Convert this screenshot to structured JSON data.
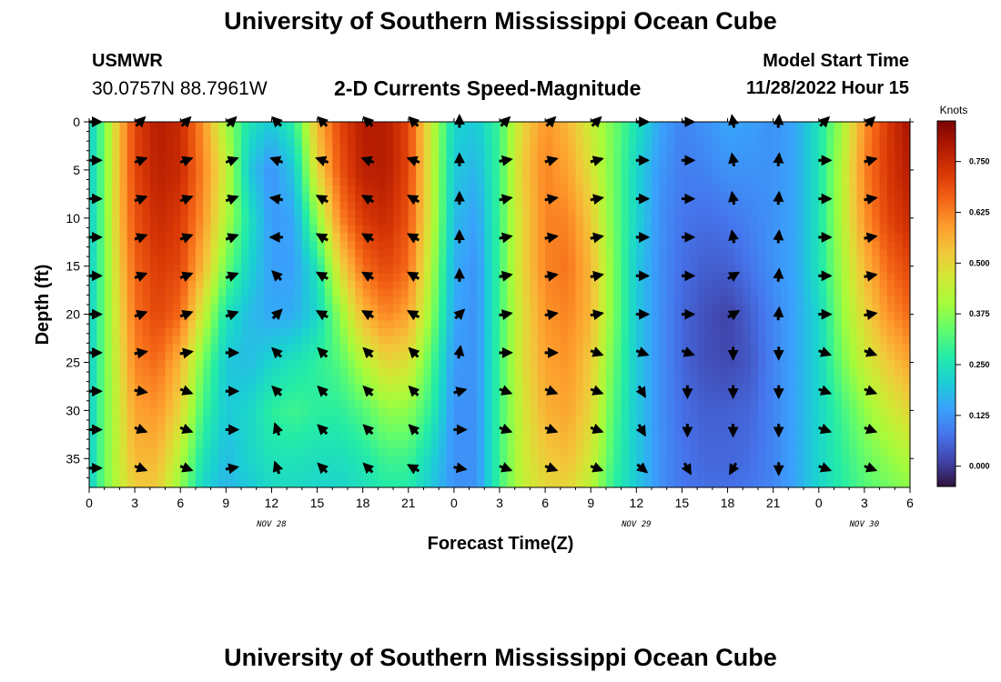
{
  "header": {
    "title_top": "University of Southern Mississippi Ocean Cube",
    "station": "USMWR",
    "coordinates": "30.0757N  88.7961W",
    "subtitle": "2-D Currents Speed-Magnitude",
    "model_start_label": "Model Start Time",
    "model_start_value": "11/28/2022 Hour 15",
    "title_bottom": "University of Southern Mississippi Ocean Cube"
  },
  "chart_data": {
    "type": "heatmap",
    "title": "2-D Currents Speed-Magnitude",
    "xlabel": "Forecast Time(Z)",
    "ylabel": "Depth (ft)",
    "xlim": [
      0,
      54
    ],
    "ylim": [
      0,
      38
    ],
    "x_ticks": [
      0,
      3,
      6,
      9,
      12,
      15,
      18,
      21,
      24,
      27,
      30,
      33,
      36,
      39,
      42,
      45,
      48,
      51,
      54
    ],
    "x_tick_labels": [
      "0",
      "3",
      "6",
      "9",
      "12",
      "15",
      "18",
      "21",
      "0",
      "3",
      "6",
      "9",
      "12",
      "15",
      "18",
      "21",
      "0",
      "3",
      "6"
    ],
    "y_ticks": [
      0,
      5,
      10,
      15,
      20,
      25,
      30,
      35
    ],
    "y_tick_labels": [
      "0",
      "5",
      "10",
      "15",
      "20",
      "25",
      "30",
      "35"
    ],
    "date_labels": [
      {
        "x": 12,
        "label": "NOV 28"
      },
      {
        "x": 36,
        "label": "NOV 29"
      },
      {
        "x": 51,
        "label": "NOV 30"
      }
    ],
    "colorbar": {
      "label": "Knots",
      "range": [
        -0.05,
        0.85
      ],
      "ticks": [
        0.0,
        0.125,
        0.25,
        0.375,
        0.5,
        0.625,
        0.75
      ],
      "tick_labels": [
        "0.000",
        "0.125",
        "0.250",
        "0.375",
        "0.500",
        "0.625",
        "0.750"
      ],
      "colors": [
        "#30123b",
        "#4145ab",
        "#4675ed",
        "#39a2fc",
        "#1bcfd4",
        "#24eca6",
        "#61fc6c",
        "#a4fc3b",
        "#d1e834",
        "#f3c63a",
        "#fe9b2d",
        "#f36315",
        "#d93806",
        "#b11901",
        "#7a0402"
      ]
    },
    "speed_grid": {
      "x": [
        0,
        1,
        2,
        3,
        4.5,
        6,
        7.5,
        9,
        10.5,
        12,
        13.5,
        15,
        16.5,
        18,
        19.5,
        21,
        22.5,
        24,
        25.5,
        27,
        28.5,
        30,
        31.5,
        33,
        34.5,
        36,
        37.5,
        39,
        40.5,
        42,
        43.5,
        45,
        46.5,
        48,
        49.5,
        51,
        52.5,
        54
      ],
      "depth": [
        0,
        5,
        10,
        15,
        20,
        25,
        30,
        35,
        38
      ],
      "values": [
        [
          0.2,
          0.35,
          0.55,
          0.7,
          0.78,
          0.75,
          0.6,
          0.4,
          0.25,
          0.2,
          0.28,
          0.55,
          0.7,
          0.78,
          0.78,
          0.7,
          0.45,
          0.22,
          0.2,
          0.3,
          0.5,
          0.6,
          0.55,
          0.45,
          0.35,
          0.25,
          0.15,
          0.1,
          0.12,
          0.15,
          0.14,
          0.12,
          0.15,
          0.25,
          0.4,
          0.6,
          0.72,
          0.8
        ],
        [
          0.2,
          0.35,
          0.55,
          0.7,
          0.77,
          0.75,
          0.62,
          0.45,
          0.2,
          0.12,
          0.2,
          0.5,
          0.68,
          0.77,
          0.78,
          0.7,
          0.45,
          0.2,
          0.17,
          0.3,
          0.52,
          0.62,
          0.58,
          0.48,
          0.35,
          0.22,
          0.13,
          0.09,
          0.1,
          0.12,
          0.12,
          0.12,
          0.15,
          0.25,
          0.42,
          0.62,
          0.72,
          0.78
        ],
        [
          0.2,
          0.35,
          0.55,
          0.68,
          0.75,
          0.72,
          0.6,
          0.42,
          0.25,
          0.13,
          0.15,
          0.38,
          0.62,
          0.72,
          0.75,
          0.68,
          0.45,
          0.18,
          0.14,
          0.3,
          0.5,
          0.62,
          0.62,
          0.52,
          0.35,
          0.22,
          0.12,
          0.08,
          0.07,
          0.08,
          0.1,
          0.12,
          0.15,
          0.25,
          0.42,
          0.6,
          0.7,
          0.75
        ],
        [
          0.2,
          0.35,
          0.52,
          0.66,
          0.72,
          0.7,
          0.55,
          0.35,
          0.22,
          0.14,
          0.14,
          0.25,
          0.5,
          0.65,
          0.7,
          0.65,
          0.42,
          0.16,
          0.12,
          0.3,
          0.5,
          0.62,
          0.64,
          0.55,
          0.36,
          0.2,
          0.12,
          0.07,
          0.05,
          0.05,
          0.08,
          0.12,
          0.15,
          0.25,
          0.4,
          0.55,
          0.65,
          0.7
        ],
        [
          0.2,
          0.35,
          0.5,
          0.64,
          0.7,
          0.65,
          0.45,
          0.25,
          0.18,
          0.15,
          0.16,
          0.22,
          0.38,
          0.55,
          0.62,
          0.58,
          0.38,
          0.15,
          0.12,
          0.3,
          0.48,
          0.6,
          0.62,
          0.55,
          0.36,
          0.2,
          0.12,
          0.06,
          0.03,
          0.01,
          0.05,
          0.1,
          0.15,
          0.22,
          0.38,
          0.5,
          0.6,
          0.65
        ],
        [
          0.2,
          0.35,
          0.48,
          0.62,
          0.65,
          0.55,
          0.35,
          0.2,
          0.18,
          0.22,
          0.25,
          0.28,
          0.32,
          0.42,
          0.5,
          0.48,
          0.32,
          0.13,
          0.12,
          0.3,
          0.48,
          0.58,
          0.6,
          0.52,
          0.34,
          0.2,
          0.12,
          0.06,
          0.03,
          0.02,
          0.04,
          0.1,
          0.15,
          0.22,
          0.35,
          0.45,
          0.52,
          0.58
        ],
        [
          0.2,
          0.35,
          0.46,
          0.58,
          0.6,
          0.5,
          0.3,
          0.2,
          0.22,
          0.28,
          0.3,
          0.28,
          0.28,
          0.32,
          0.38,
          0.38,
          0.28,
          0.12,
          0.12,
          0.3,
          0.46,
          0.56,
          0.58,
          0.5,
          0.32,
          0.2,
          0.12,
          0.07,
          0.05,
          0.05,
          0.06,
          0.1,
          0.15,
          0.22,
          0.3,
          0.38,
          0.45,
          0.5
        ],
        [
          0.2,
          0.35,
          0.45,
          0.55,
          0.55,
          0.42,
          0.25,
          0.18,
          0.22,
          0.25,
          0.25,
          0.24,
          0.24,
          0.26,
          0.3,
          0.3,
          0.22,
          0.12,
          0.12,
          0.3,
          0.45,
          0.52,
          0.54,
          0.46,
          0.3,
          0.2,
          0.12,
          0.08,
          0.06,
          0.06,
          0.07,
          0.1,
          0.15,
          0.22,
          0.28,
          0.34,
          0.38,
          0.42
        ],
        [
          0.2,
          0.35,
          0.44,
          0.52,
          0.52,
          0.38,
          0.22,
          0.17,
          0.2,
          0.23,
          0.23,
          0.22,
          0.22,
          0.24,
          0.27,
          0.27,
          0.2,
          0.12,
          0.12,
          0.3,
          0.44,
          0.5,
          0.5,
          0.43,
          0.28,
          0.2,
          0.12,
          0.08,
          0.07,
          0.07,
          0.08,
          0.1,
          0.15,
          0.22,
          0.27,
          0.32,
          0.35,
          0.38
        ]
      ]
    },
    "vector_rows_depth_ft": [
      0,
      4,
      8,
      12,
      16,
      20,
      24,
      28,
      32,
      36
    ],
    "vector_cols_hour": [
      0,
      3,
      6,
      9,
      12,
      15,
      18,
      21,
      24,
      27,
      30,
      33,
      36,
      39,
      42,
      45,
      48,
      51
    ],
    "vector_angles_deg": [
      [
        0,
        45,
        45,
        45,
        135,
        135,
        135,
        135,
        90,
        45,
        45,
        45,
        0,
        0,
        100,
        85,
        45,
        45
      ],
      [
        0,
        20,
        20,
        20,
        160,
        160,
        160,
        160,
        90,
        10,
        15,
        15,
        0,
        0,
        100,
        85,
        0,
        15
      ],
      [
        0,
        20,
        20,
        20,
        170,
        150,
        150,
        150,
        90,
        10,
        10,
        10,
        0,
        0,
        100,
        85,
        0,
        10
      ],
      [
        0,
        20,
        20,
        20,
        180,
        150,
        150,
        150,
        90,
        10,
        10,
        10,
        0,
        0,
        100,
        85,
        0,
        10
      ],
      [
        0,
        20,
        20,
        20,
        135,
        150,
        150,
        150,
        90,
        10,
        10,
        10,
        0,
        0,
        30,
        85,
        0,
        10
      ],
      [
        0,
        20,
        20,
        20,
        45,
        150,
        150,
        150,
        45,
        10,
        10,
        10,
        0,
        0,
        30,
        85,
        0,
        10
      ],
      [
        0,
        10,
        10,
        0,
        135,
        135,
        135,
        135,
        80,
        0,
        0,
        -20,
        -20,
        -20,
        -90,
        -90,
        -20,
        -20
      ],
      [
        0,
        -10,
        -20,
        0,
        135,
        135,
        135,
        135,
        15,
        -20,
        -20,
        -20,
        -60,
        -90,
        -90,
        -90,
        -20,
        -20
      ],
      [
        0,
        -20,
        -20,
        0,
        110,
        135,
        135,
        135,
        0,
        -20,
        -20,
        -20,
        -60,
        -90,
        -90,
        -90,
        -20,
        -20
      ],
      [
        0,
        -20,
        -20,
        10,
        110,
        135,
        135,
        150,
        -10,
        -20,
        -20,
        -20,
        -40,
        -60,
        -120,
        -90,
        -20,
        -20
      ]
    ]
  }
}
